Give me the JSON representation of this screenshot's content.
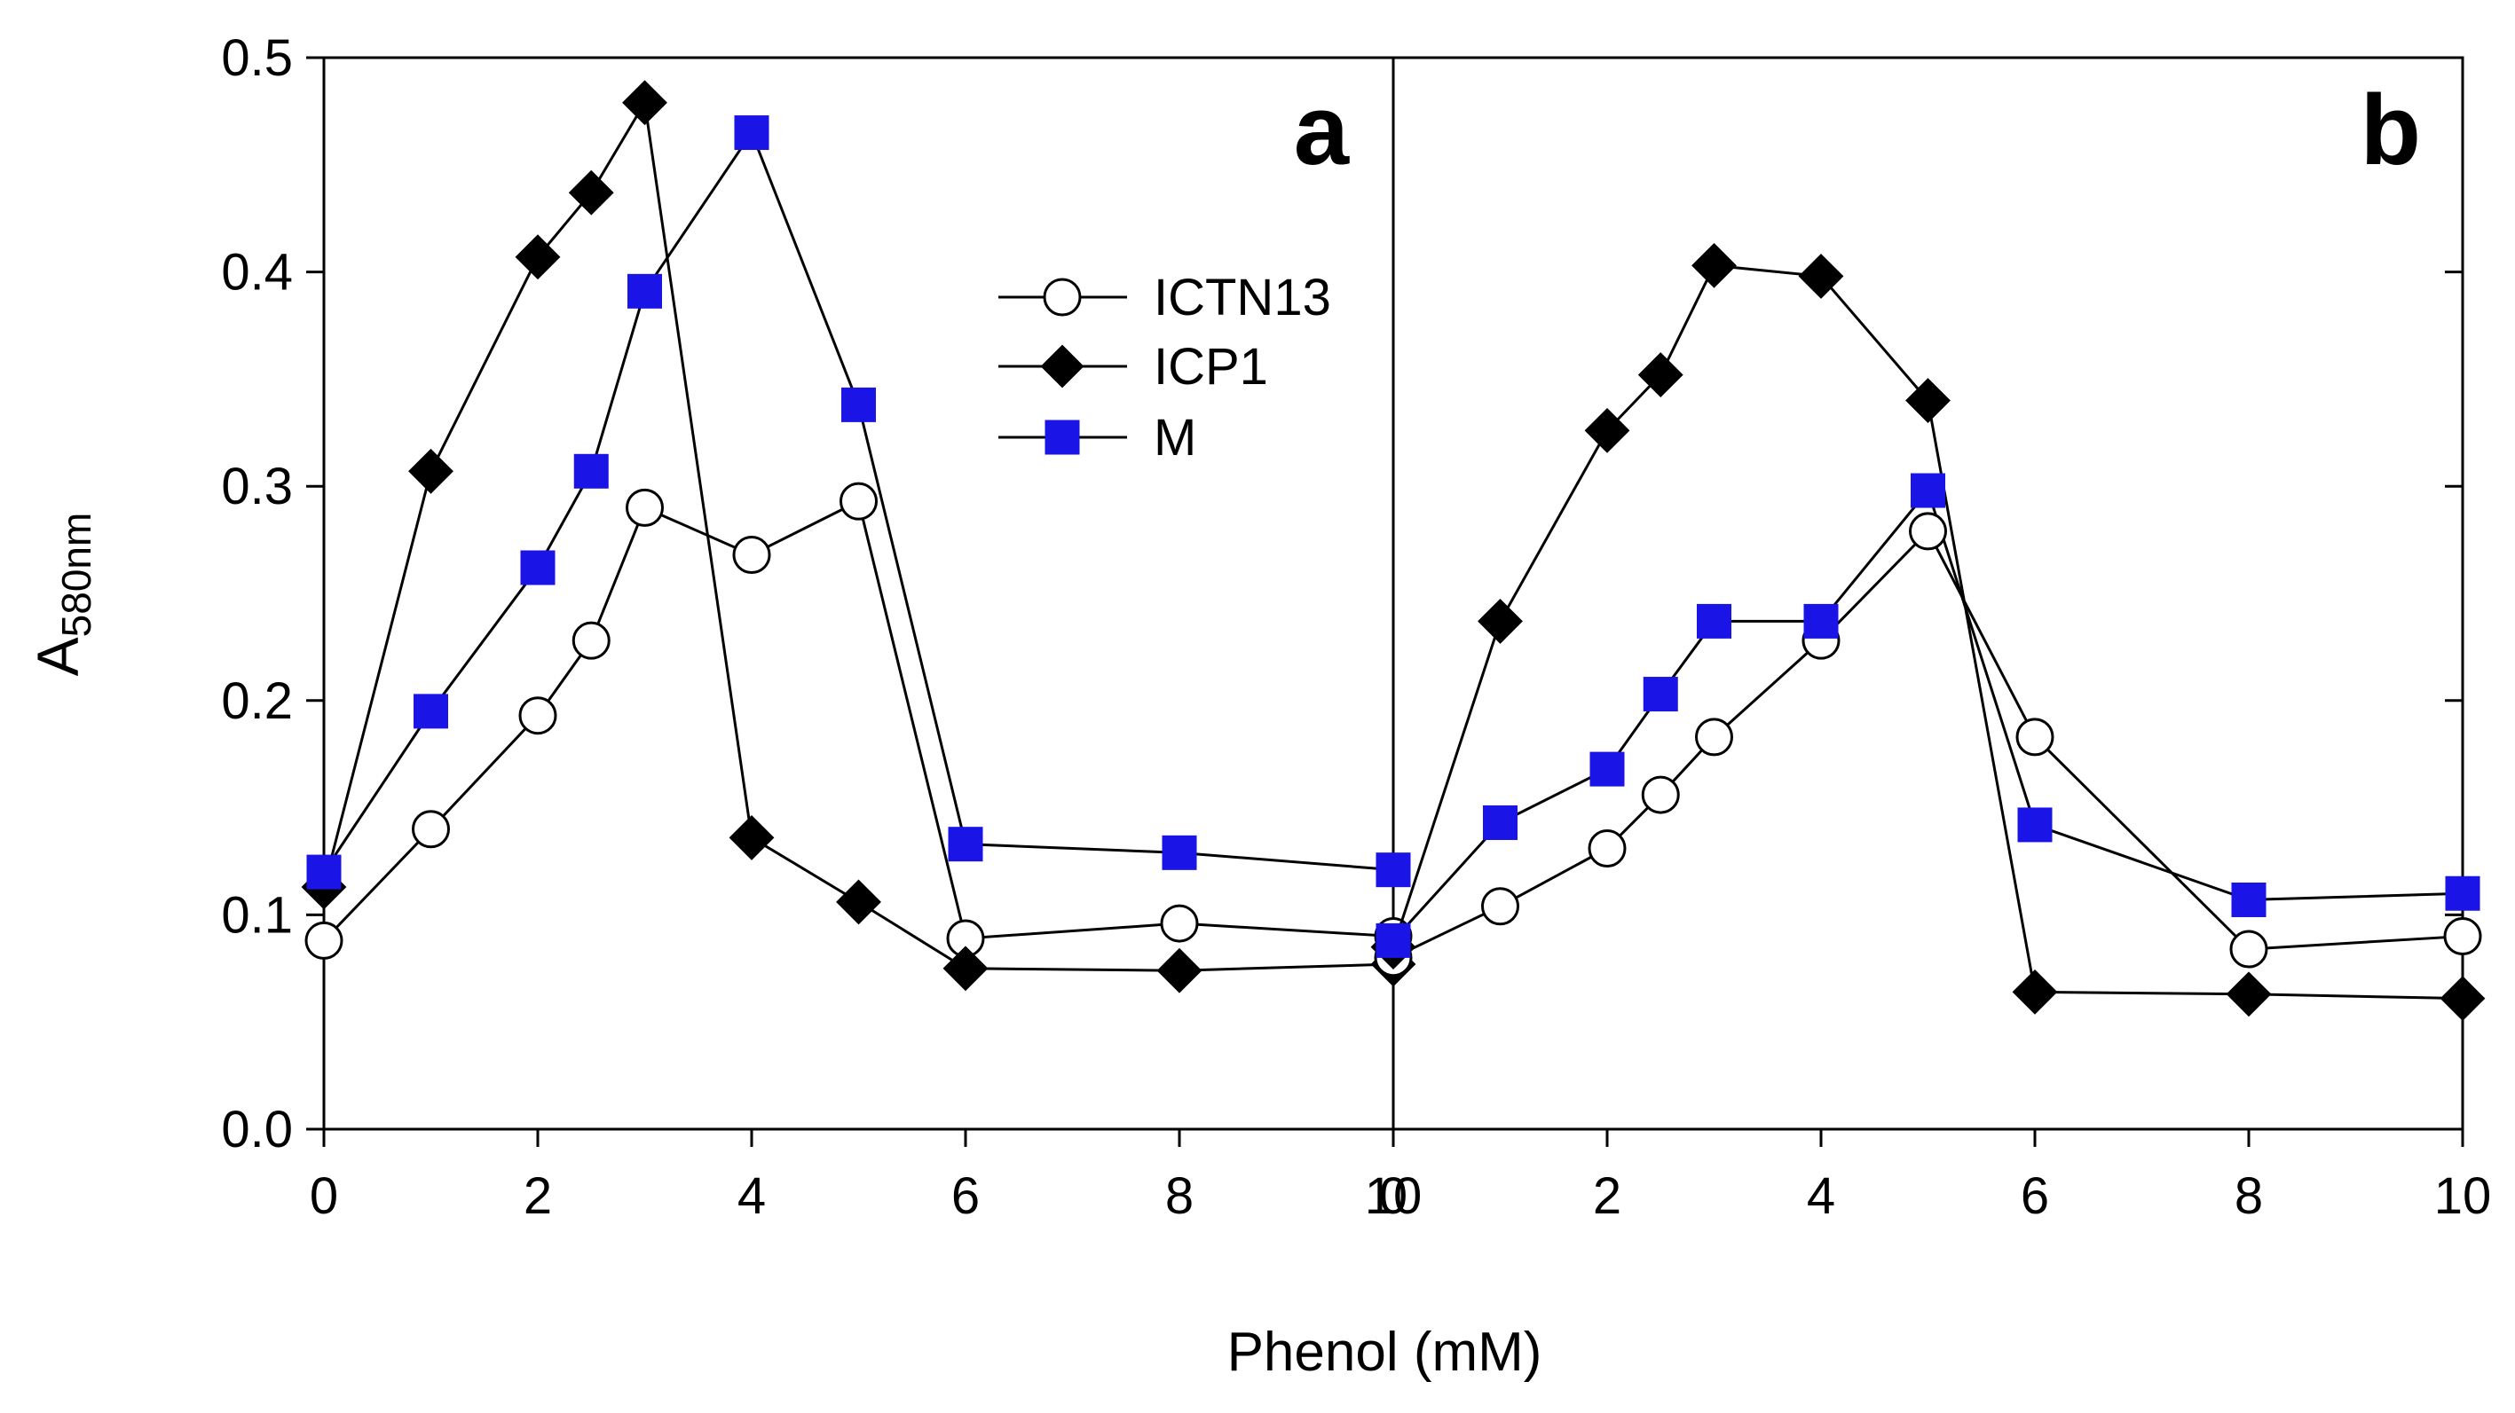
{
  "chart_data": [
    {
      "panel": "a",
      "type": "line",
      "x": [
        0,
        1,
        2,
        2.5,
        3,
        4,
        5,
        6,
        8,
        10
      ],
      "xlim": [
        0,
        10
      ],
      "ylim": [
        0.0,
        0.5
      ],
      "xticks": [
        0,
        2,
        4,
        6,
        8,
        10
      ],
      "yticks": [
        0.0,
        0.1,
        0.2,
        0.3,
        0.4,
        0.5
      ],
      "ytick_labels": [
        "0.0",
        "0.1",
        "0.2",
        "0.3",
        "0.4",
        "0.5"
      ],
      "series": [
        {
          "name": "ICTN13",
          "marker": "circle",
          "values": [
            0.088,
            0.14,
            0.193,
            0.228,
            0.29,
            0.268,
            0.293,
            0.089,
            0.096,
            0.09
          ]
        },
        {
          "name": "ICP1",
          "marker": "diamond",
          "values": [
            0.113,
            0.307,
            0.407,
            0.437,
            0.479,
            0.136,
            0.106,
            0.075,
            0.074,
            0.077
          ]
        },
        {
          "name": "M",
          "marker": "square",
          "values": [
            0.12,
            0.195,
            0.262,
            0.307,
            0.391,
            0.465,
            0.338,
            0.133,
            0.129,
            0.121
          ]
        }
      ],
      "legend": {
        "entries": [
          "ICTN13",
          "ICP1",
          "M"
        ],
        "position": "upper-right"
      }
    },
    {
      "panel": "b",
      "type": "line",
      "x": [
        0,
        1,
        2,
        2.5,
        3,
        4,
        5,
        6,
        8,
        10
      ],
      "xlim": [
        0,
        10
      ],
      "ylim": [
        0.0,
        0.5
      ],
      "xticks": [
        0,
        2,
        4,
        6,
        8,
        10
      ],
      "yticks": [
        0.0,
        0.1,
        0.2,
        0.3,
        0.4,
        0.5
      ],
      "series": [
        {
          "name": "ICTN13",
          "marker": "circle",
          "values": [
            0.08,
            0.104,
            0.131,
            0.156,
            0.183,
            0.228,
            0.279,
            0.183,
            0.084,
            0.09
          ]
        },
        {
          "name": "ICP1",
          "marker": "diamond",
          "values": [
            0.085,
            0.237,
            0.326,
            0.352,
            0.403,
            0.398,
            0.34,
            0.064,
            0.063,
            0.061
          ]
        },
        {
          "name": "M",
          "marker": "square",
          "values": [
            0.088,
            0.143,
            0.168,
            0.203,
            0.237,
            0.237,
            0.298,
            0.142,
            0.107,
            0.11
          ]
        }
      ]
    }
  ],
  "xlabel": "Phenol (mM)",
  "ylabel_main": "A",
  "ylabel_sub": "580nm",
  "colors": {
    "marker_m": "#1a14e6",
    "line": "#000000",
    "background": "#ffffff"
  }
}
